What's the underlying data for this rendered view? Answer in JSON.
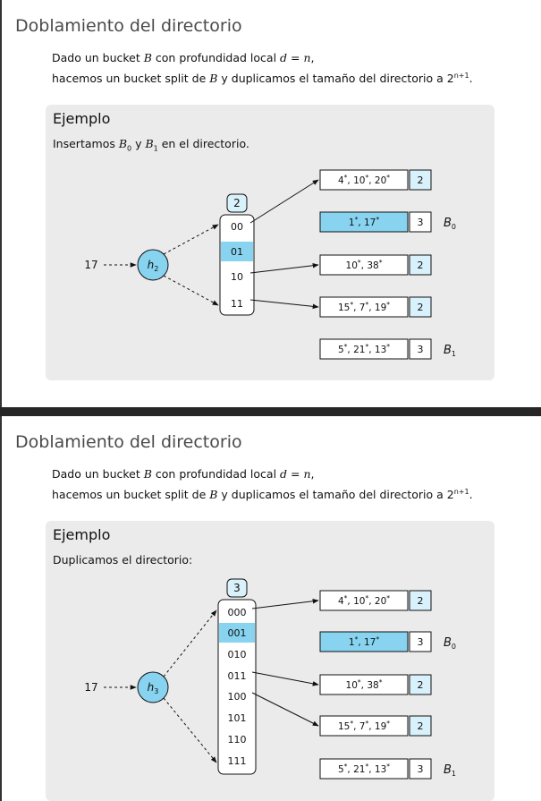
{
  "slides": [
    {
      "title": "Doblamiento del directorio",
      "intro": {
        "l1_a": "Dado un bucket ",
        "l1_b": "B",
        "l1_c": " con profundidad local ",
        "l1_d": "d = n",
        "l1_e": ",",
        "l2_a": "hacemos un bucket split de ",
        "l2_b": "B",
        "l2_c": " y duplicamos el tamaño del directorio a 2",
        "l2_sup": "n+1",
        "l2_end": "."
      },
      "block": {
        "title": "Ejemplo",
        "text_a": "Insertamos ",
        "text_b0": "B",
        "text_b0_sub": "0",
        "text_mid": " y ",
        "text_b1": "B",
        "text_b1_sub": "1",
        "text_end": " en el directorio."
      },
      "diagram": {
        "key": "17",
        "hash_name": "h",
        "hash_sub": "2",
        "global_depth": "2",
        "directory": [
          "00",
          "01",
          "10",
          "11"
        ],
        "highlight_entry": 1,
        "buckets": [
          {
            "content": "4*, 10*, 20*",
            "depth": "2",
            "highlight": false,
            "label": ""
          },
          {
            "content": "1*, 17*",
            "depth": "3",
            "highlight": true,
            "label": "B0"
          },
          {
            "content": "10*, 38*",
            "depth": "2",
            "highlight": false,
            "label": ""
          },
          {
            "content": "15*, 7*, 19*",
            "depth": "2",
            "highlight": false,
            "label": ""
          },
          {
            "content": "5*, 21*, 13*",
            "depth": "3",
            "highlight": false,
            "label": "B1"
          }
        ],
        "links": [
          [
            0,
            0
          ],
          [
            2,
            2
          ],
          [
            3,
            3
          ]
        ]
      }
    },
    {
      "title": "Doblamiento del directorio",
      "intro": {
        "l1_a": "Dado un bucket ",
        "l1_b": "B",
        "l1_c": " con profundidad local ",
        "l1_d": "d = n",
        "l1_e": ",",
        "l2_a": "hacemos un bucket split de ",
        "l2_b": "B",
        "l2_c": " y duplicamos el tamaño del directorio a 2",
        "l2_sup": "n+1",
        "l2_end": "."
      },
      "block": {
        "title": "Ejemplo",
        "text_a": "Duplicamos el directorio:"
      },
      "diagram": {
        "key": "17",
        "hash_name": "h",
        "hash_sub": "3",
        "global_depth": "3",
        "directory": [
          "000",
          "001",
          "010",
          "011",
          "100",
          "101",
          "110",
          "111"
        ],
        "highlight_entry": 1,
        "buckets": [
          {
            "content": "4*, 10*, 20*",
            "depth": "2",
            "highlight": false,
            "label": ""
          },
          {
            "content": "1*, 17*",
            "depth": "3",
            "highlight": true,
            "label": "B0"
          },
          {
            "content": "10*, 38*",
            "depth": "2",
            "highlight": false,
            "label": ""
          },
          {
            "content": "15*, 7*, 19*",
            "depth": "2",
            "highlight": false,
            "label": ""
          },
          {
            "content": "5*, 21*, 13*",
            "depth": "3",
            "highlight": false,
            "label": "B1"
          }
        ],
        "links": [
          [
            0,
            0
          ],
          [
            3,
            2
          ],
          [
            4,
            3
          ]
        ]
      }
    }
  ],
  "colors": {
    "highlight": "#87d3f0",
    "hash_fill": "#87d3f0",
    "depth_fill": "#d8f1fb",
    "block_bg": "#ebebeb",
    "title": "#4a4a4a"
  }
}
